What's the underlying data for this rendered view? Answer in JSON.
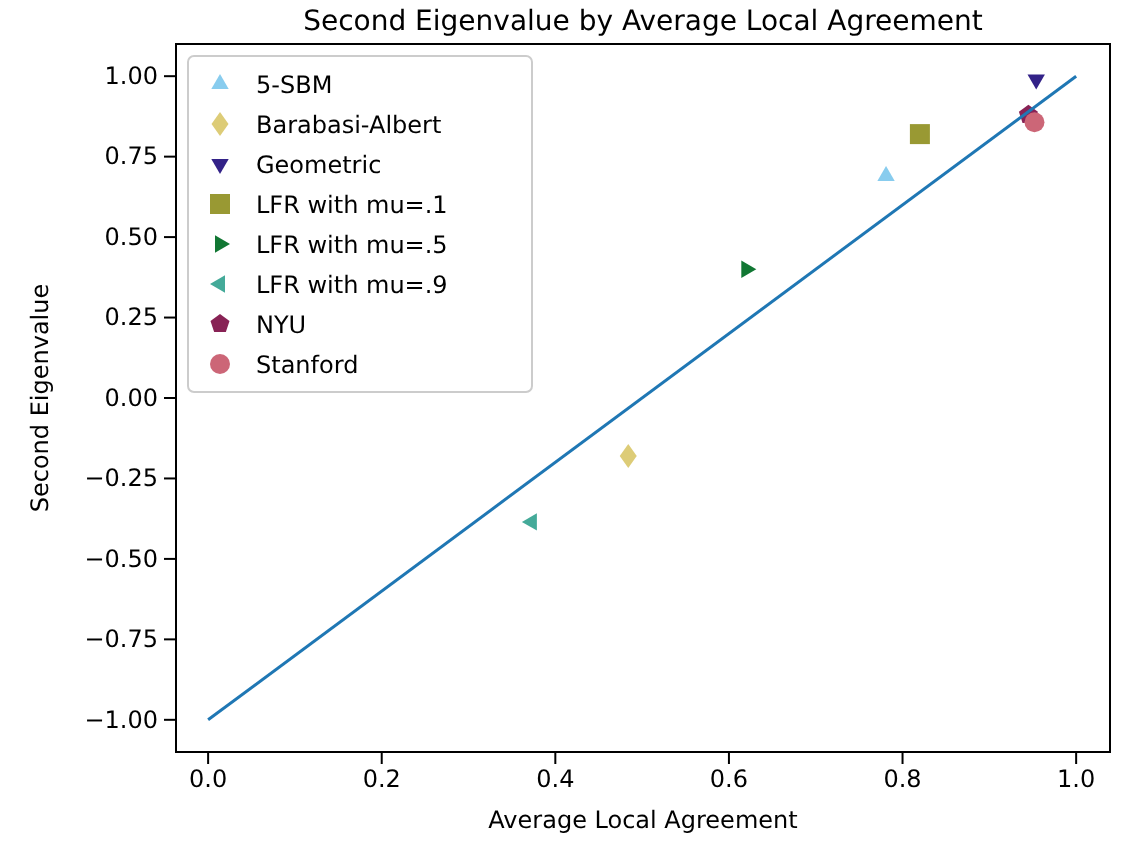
{
  "chart_data": {
    "type": "scatter",
    "title": "Second Eigenvalue by Average Local Agreement",
    "xlabel": "Average Local Agreement",
    "ylabel": "Second Eigenvalue",
    "xlim": [
      -0.037,
      1.039
    ],
    "ylim": [
      -1.1,
      1.1
    ],
    "xticks": [
      {
        "value": 0,
        "label": "0.0"
      },
      {
        "value": 0.2,
        "label": "0.2"
      },
      {
        "value": 0.4,
        "label": "0.4"
      },
      {
        "value": 0.6,
        "label": "0.6"
      },
      {
        "value": 0.8,
        "label": "0.8"
      },
      {
        "value": 1,
        "label": "1.0"
      }
    ],
    "yticks": [
      {
        "value": -1,
        "label": "−1.00"
      },
      {
        "value": -0.75,
        "label": "−0.75"
      },
      {
        "value": -0.5,
        "label": "−0.50"
      },
      {
        "value": -0.25,
        "label": "−0.25"
      },
      {
        "value": 0,
        "label": "0.00"
      },
      {
        "value": 0.25,
        "label": "0.25"
      },
      {
        "value": 0.5,
        "label": "0.50"
      },
      {
        "value": 0.75,
        "label": "0.75"
      },
      {
        "value": 1,
        "label": "1.00"
      }
    ],
    "legend": "top left",
    "grid": false,
    "series": [
      {
        "name": "5-SBM",
        "color": "#88ccee",
        "marker": "triangle",
        "x": [
          0.781
        ],
        "values": [
          0.69
        ]
      },
      {
        "name": "Barabasi-Albert",
        "color": "#ddcc77",
        "marker": "diamond",
        "x": [
          0.484
        ],
        "values": [
          -0.18
        ]
      },
      {
        "name": "Geometric",
        "color": "#332288",
        "marker": "triangle-down",
        "x": [
          0.954
        ],
        "values": [
          0.99
        ]
      },
      {
        "name": "LFR with mu=.1",
        "color": "#999933",
        "marker": "square",
        "x": [
          0.82
        ],
        "values": [
          0.82
        ]
      },
      {
        "name": "LFR with mu=.5",
        "color": "#117733",
        "marker": "triangle-right",
        "x": [
          0.62
        ],
        "values": [
          0.4
        ]
      },
      {
        "name": "LFR with mu=.9",
        "color": "#44aa99",
        "marker": "triangle-left",
        "x": [
          0.373
        ],
        "values": [
          -0.385
        ]
      },
      {
        "name": "NYU",
        "color": "#882255",
        "x": [
          0.945
        ],
        "values": [
          0.88
        ]
      },
      {
        "name": "Stanford",
        "color": "#cc6677",
        "marker": "circle",
        "x": [
          0.952
        ],
        "values": [
          0.857
        ]
      },
      {
        "type": "line",
        "color": "#1f77b4",
        "marker": "none",
        "line_style": "solid",
        "x": [
          0,
          1
        ],
        "values": [
          -1,
          1
        ]
      }
    ]
  }
}
